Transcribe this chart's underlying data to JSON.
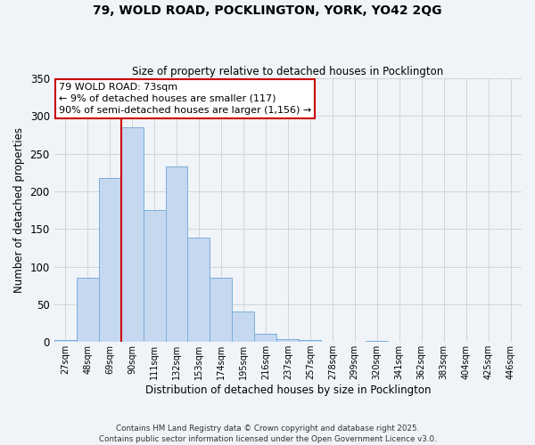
{
  "title": "79, WOLD ROAD, POCKLINGTON, YORK, YO42 2QG",
  "subtitle": "Size of property relative to detached houses in Pocklington",
  "xlabel": "Distribution of detached houses by size in Pocklington",
  "ylabel": "Number of detached properties",
  "bar_labels": [
    "27sqm",
    "48sqm",
    "69sqm",
    "90sqm",
    "111sqm",
    "132sqm",
    "153sqm",
    "174sqm",
    "195sqm",
    "216sqm",
    "237sqm",
    "257sqm",
    "278sqm",
    "299sqm",
    "320sqm",
    "341sqm",
    "362sqm",
    "383sqm",
    "404sqm",
    "425sqm",
    "446sqm"
  ],
  "bar_values": [
    2,
    85,
    218,
    285,
    175,
    233,
    138,
    85,
    40,
    11,
    4,
    2,
    0,
    0,
    1,
    0,
    0,
    0,
    0,
    0,
    0
  ],
  "bar_color": "#c5d8f0",
  "bar_edge_color": "#7aaedb",
  "grid_color": "#cccccc",
  "vline_color": "#cc0000",
  "vline_pos": 2.5,
  "ylim": [
    0,
    350
  ],
  "yticks": [
    0,
    50,
    100,
    150,
    200,
    250,
    300,
    350
  ],
  "annotation_title": "79 WOLD ROAD: 73sqm",
  "annotation_line1": "← 9% of detached houses are smaller (117)",
  "annotation_line2": "90% of semi-detached houses are larger (1,156) →",
  "footnote1": "Contains HM Land Registry data © Crown copyright and database right 2025.",
  "footnote2": "Contains public sector information licensed under the Open Government Licence v3.0.",
  "bg_color": "#f0f4f8"
}
